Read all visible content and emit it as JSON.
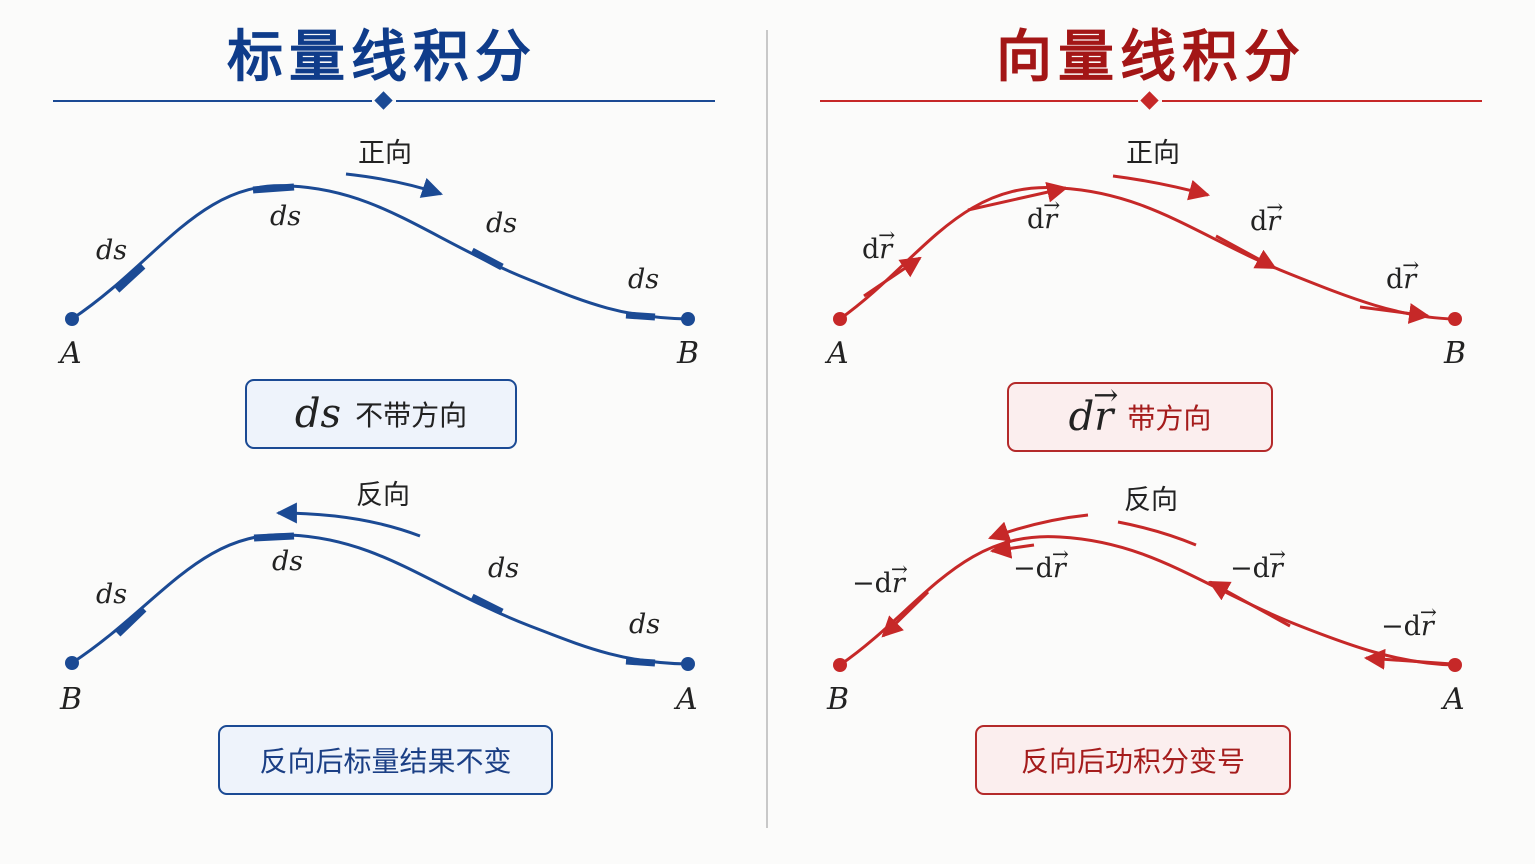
{
  "left": {
    "title": "标量线积分",
    "forward_label": "正向",
    "reverse_label": "反向",
    "element_label": "ds",
    "start_point": "A",
    "end_point": "B",
    "box_math": "ds",
    "box_caption": "不带方向",
    "conclusion": "反向后标量结果不变",
    "color": "#0f3c8a"
  },
  "right": {
    "title": "向量线积分",
    "forward_label": "正向",
    "reverse_label": "反向",
    "element_d": "d",
    "element_r": "r",
    "neg_element_d": "−d",
    "start_point": "A",
    "end_point": "B",
    "box_math_d": "d",
    "box_math_r": "r",
    "box_caption": "带方向",
    "conclusion": "反向后功积分变号",
    "color": "#b71c1c"
  },
  "divider_color": "#c8c8c8"
}
